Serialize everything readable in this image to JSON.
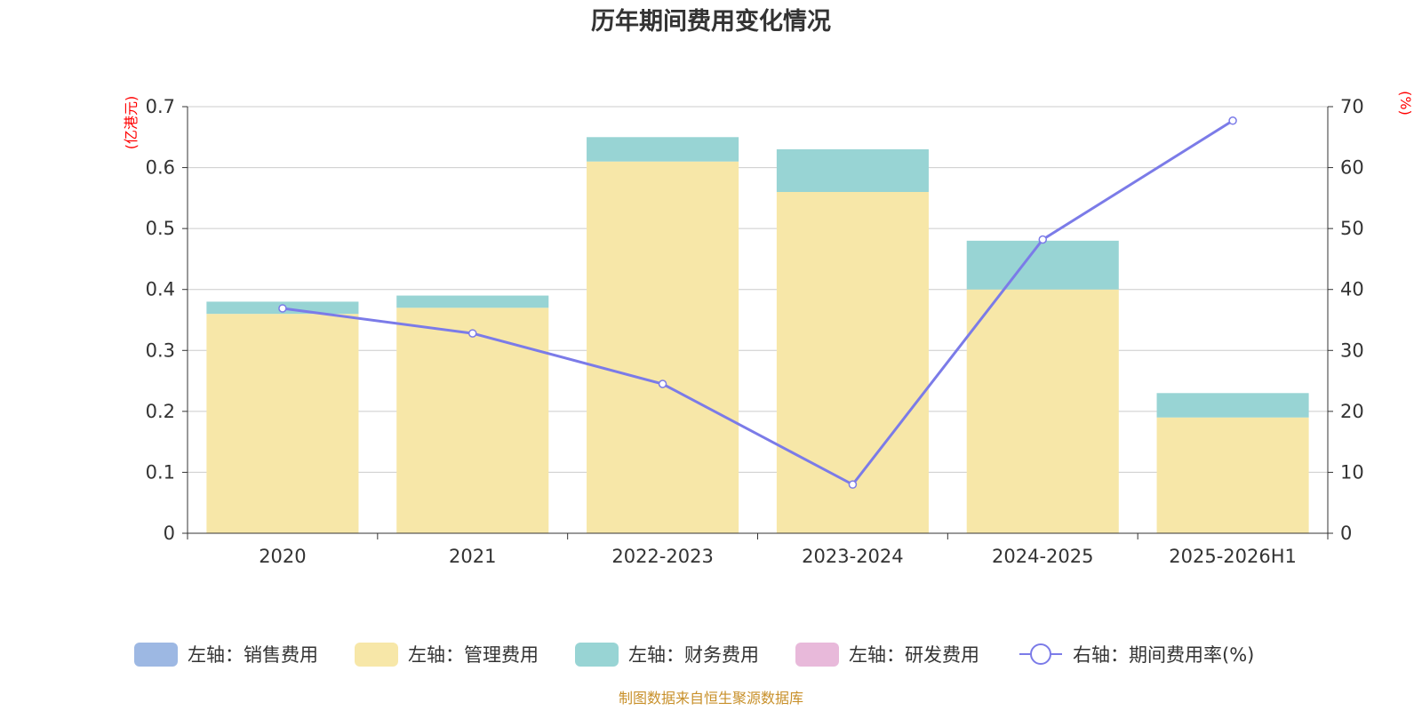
{
  "chart_data": {
    "type": "bar",
    "title": "历年期间费用变化情况",
    "categories": [
      "2020",
      "2021",
      "2022-2023",
      "2023-2024",
      "2024-2025",
      "2025-2026H1"
    ],
    "left_axis": {
      "unit_label": "(亿港元)",
      "ylim": [
        0,
        0.7
      ],
      "ticks": [
        "0",
        "0.1",
        "0.2",
        "0.3",
        "0.4",
        "0.5",
        "0.6",
        "0.7"
      ]
    },
    "right_axis": {
      "unit_label": "(%)",
      "ylim": [
        0,
        70
      ],
      "ticks": [
        "0",
        "10",
        "20",
        "30",
        "40",
        "50",
        "60",
        "70"
      ]
    },
    "series": [
      {
        "name": "左轴：销售费用",
        "type": "bar",
        "stack": "fee",
        "axis": "left",
        "color": "#9db8e3",
        "values": [
          0,
          0,
          0,
          0,
          0,
          0
        ]
      },
      {
        "name": "左轴：管理费用",
        "type": "bar",
        "stack": "fee",
        "axis": "left",
        "color": "#f7e7a8",
        "values": [
          0.36,
          0.37,
          0.61,
          0.56,
          0.4,
          0.19
        ]
      },
      {
        "name": "左轴：财务费用",
        "type": "bar",
        "stack": "fee",
        "axis": "left",
        "color": "#98d4d4",
        "values": [
          0.02,
          0.02,
          0.04,
          0.07,
          0.08,
          0.04
        ]
      },
      {
        "name": "左轴：研发费用",
        "type": "bar",
        "stack": "fee",
        "axis": "left",
        "color": "#e8b9da",
        "values": [
          0,
          0,
          0,
          0,
          0,
          0
        ]
      },
      {
        "name": "右轴：期间费用率(%)",
        "type": "line",
        "axis": "right",
        "color": "#7b7be8",
        "values": [
          36.9,
          32.8,
          24.5,
          8.0,
          48.2,
          67.7
        ]
      }
    ],
    "grid": true,
    "legend_position": "bottom"
  },
  "footer": {
    "source": "制图数据来自恒生聚源数据库"
  }
}
